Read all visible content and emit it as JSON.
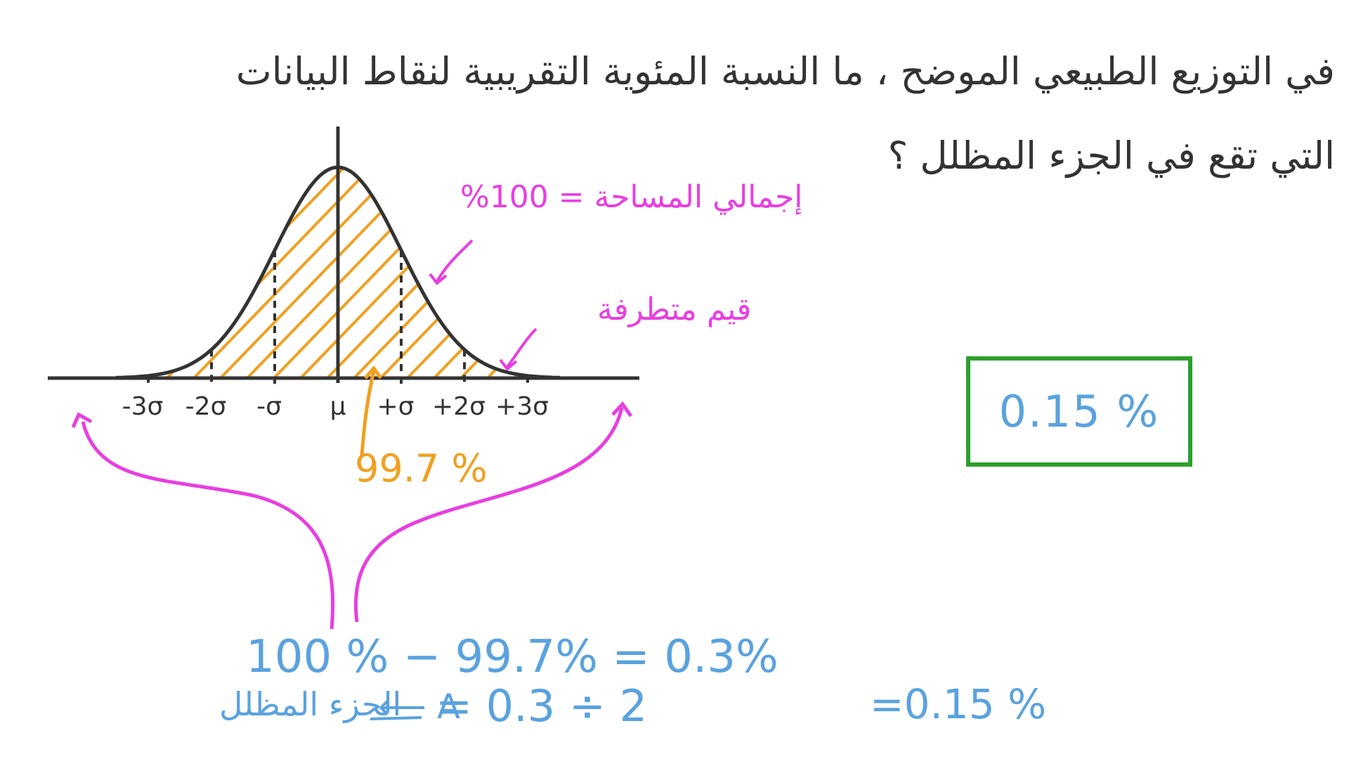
{
  "question": {
    "line1": "في التوزيع الطبيعي الموضح ، ما النسبة المئوية التقريبية لنقاط البيانات",
    "line2": "التي تقع في الجزء المظلل ؟"
  },
  "diagram": {
    "axis_labels": [
      "-3σ",
      "-2σ",
      "-σ",
      "μ",
      "+σ",
      "+2σ",
      "+3σ"
    ],
    "total_area_label": "إجمالي المساحة = 100%",
    "outliers_label": "قيم متطرفة",
    "within_3sd_label": "99.7 %"
  },
  "chart_data": {
    "type": "area",
    "xlabel": "",
    "ylabel": "",
    "categories": [
      "-3σ",
      "-2σ",
      "-σ",
      "μ",
      "+σ",
      "+2σ",
      "+3σ"
    ],
    "x_range_sd": [
      -3.5,
      3.5
    ],
    "shaded_regions": [
      {
        "from_sd": -3,
        "to_sd": 3,
        "color": "#f0a020",
        "percent": 99.7
      },
      {
        "from_sd": -3.5,
        "to_sd": -3,
        "color": "#2ca02c",
        "percent": 0.15
      }
    ],
    "colors": {
      "curve": "#333333",
      "within": "#f0a020",
      "shaded": "#2ca02c"
    }
  },
  "working": {
    "line1": "100 % − 99.7% = 0.3%",
    "shaded_part": "الجزء المظلل",
    "arrow_a": "⟵ A",
    "line2": "=  0.3 ÷ 2",
    "result": "=0.15 %"
  },
  "answer": {
    "value": "0.15 %",
    "box_color": "#2ca02c"
  },
  "colors": {
    "text": "#333333",
    "pink": "#e83ee0",
    "orange": "#f0a020",
    "blue": "#5aa2de",
    "green": "#2ca02c"
  }
}
